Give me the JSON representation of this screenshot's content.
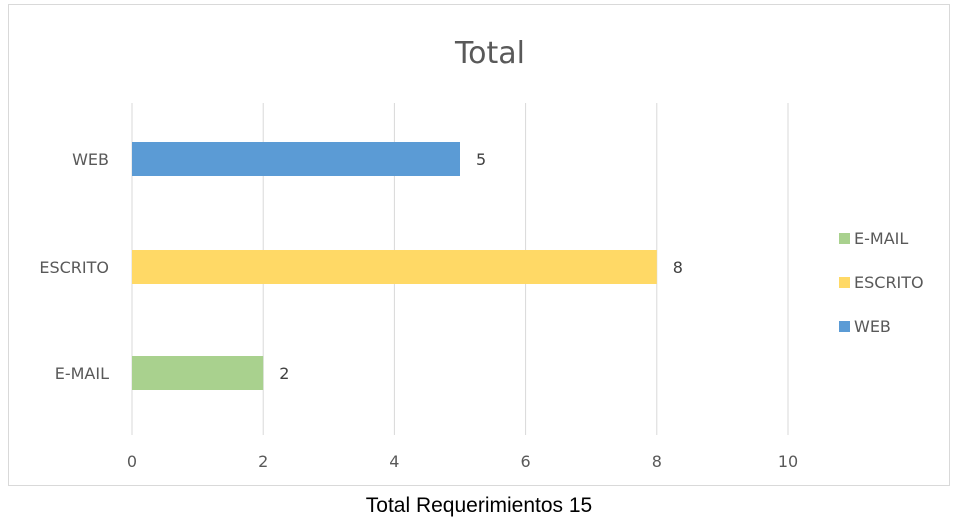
{
  "chart_data": {
    "type": "bar",
    "orientation": "horizontal",
    "title": "Total",
    "categories": [
      "WEB",
      "ESCRITO",
      "E-MAIL"
    ],
    "values": [
      5,
      8,
      2
    ],
    "colors": [
      "#5b9bd5",
      "#ffd966",
      "#a9d18e"
    ],
    "xlim": [
      0,
      10
    ],
    "x_ticks": [
      "0",
      "2",
      "4",
      "6",
      "8",
      "10"
    ],
    "xlabel": "",
    "ylabel": "",
    "grid": true,
    "data_labels": true,
    "legend": {
      "placement": "right",
      "entries": [
        {
          "label": "E-MAIL",
          "color": "#a9d18e"
        },
        {
          "label": "ESCRITO",
          "color": "#ffd966"
        },
        {
          "label": "WEB",
          "color": "#5b9bd5"
        }
      ]
    }
  },
  "caption": "Total Requerimientos 15"
}
